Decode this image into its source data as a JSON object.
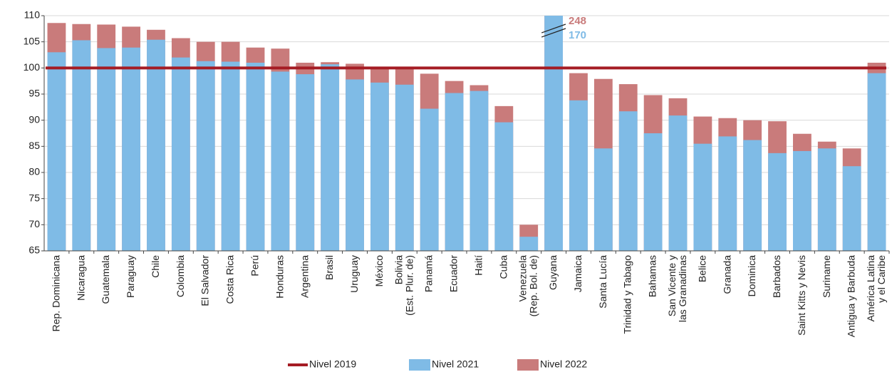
{
  "chart_data": {
    "type": "bar",
    "categories": [
      "Rep. Dominicana",
      "Nicaragua",
      "Guatemala",
      "Paraguay",
      "Chile",
      "Colombia",
      "El Salvador",
      "Costa Rica",
      "Perú",
      "Honduras",
      "Argentina",
      "Brasil",
      "Uruguay",
      "México",
      "Bolivia\n(Est. Plur. de)",
      "Panamá",
      "Ecuador",
      "Haití",
      "Cuba",
      "Venezuela\n(Rep. Bol. de)",
      "Guyana",
      "Jamaica",
      "Santa Lucía",
      "Trinidad y Tabago",
      "Bahamas",
      "San Vicente y\nlas Granadinas",
      "Belice",
      "Granada",
      "Dominica",
      "Barbados",
      "Saint Kitts y Nevis",
      "Suriname",
      "Antigua y Barbuda",
      "América Latina\ny el Caribe"
    ],
    "series": [
      {
        "name": "Nivel 2022",
        "color": "#c97b7b",
        "values": [
          108.6,
          108.4,
          108.3,
          107.9,
          107.3,
          105.7,
          105,
          105,
          103.9,
          103.7,
          101,
          101.1,
          100.8,
          100,
          100,
          98.9,
          97.5,
          96.7,
          92.7,
          70,
          248,
          99,
          97.9,
          96.9,
          94.8,
          94.2,
          90.7,
          90.4,
          90,
          89.8,
          87.4,
          85.9,
          84.6,
          101
        ],
        "value_labels": [
          null,
          null,
          null,
          null,
          null,
          null,
          null,
          null,
          null,
          null,
          null,
          null,
          null,
          null,
          null,
          null,
          null,
          null,
          null,
          null,
          "248",
          null,
          null,
          null,
          null,
          null,
          null,
          null,
          null,
          null,
          null,
          null,
          null,
          null
        ]
      },
      {
        "name": "Nivel 2021",
        "color": "#7fbbe6",
        "values": [
          103,
          105.3,
          103.8,
          103.9,
          105.4,
          102,
          101.3,
          101.2,
          101,
          99.3,
          98.8,
          100.7,
          97.8,
          97.2,
          96.8,
          92.2,
          95.2,
          95.6,
          89.6,
          67.7,
          170,
          93.8,
          84.6,
          91.7,
          87.5,
          90.9,
          85.5,
          86.9,
          86.2,
          83.7,
          84.1,
          84.6,
          81.2,
          99
        ],
        "value_labels": [
          null,
          null,
          null,
          null,
          null,
          null,
          null,
          null,
          null,
          null,
          null,
          null,
          null,
          null,
          null,
          null,
          null,
          null,
          null,
          null,
          "170",
          null,
          null,
          null,
          null,
          null,
          null,
          null,
          null,
          null,
          null,
          null,
          null,
          null
        ]
      }
    ],
    "reference_line": {
      "name": "Nivel 2019",
      "value": 100,
      "color": "#a51c24"
    },
    "ylim": [
      65,
      110
    ],
    "yticks": [
      65,
      70,
      75,
      80,
      85,
      90,
      95,
      100,
      105,
      110
    ],
    "grid": true
  }
}
